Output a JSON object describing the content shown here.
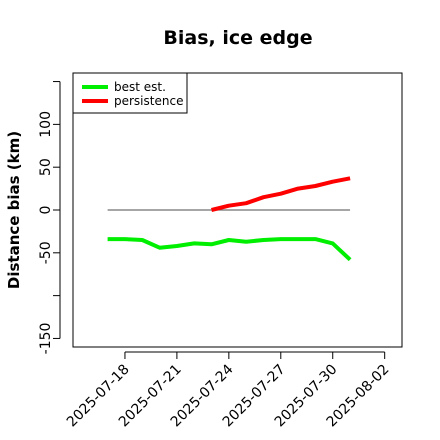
{
  "chart_data": {
    "type": "line",
    "title": "Bias, ice edge",
    "xlabel": "",
    "ylabel": "Distance bias (km)",
    "x_type": "date",
    "xlim": [
      "2025-07-15",
      "2025-08-03"
    ],
    "ylim": [
      -160,
      160
    ],
    "y_ticks": [
      -150,
      -100,
      -50,
      0,
      50,
      100,
      150
    ],
    "y_tick_labels": [
      "-150",
      "",
      "-50",
      "0",
      "50",
      "100",
      ""
    ],
    "x_ticks": [
      "2025-07-18",
      "2025-07-21",
      "2025-07-24",
      "2025-07-27",
      "2025-07-30",
      "2025-08-02"
    ],
    "legend": {
      "placement": "top-left",
      "entries": [
        "best est.",
        "persistence"
      ]
    },
    "reference_line": {
      "y": 0,
      "x_start": "2025-07-17",
      "x_end": "2025-07-31",
      "color": "#707070"
    },
    "series": [
      {
        "name": "best est.",
        "color": "#00ee00",
        "points": [
          {
            "x": "2025-07-17",
            "y": -34
          },
          {
            "x": "2025-07-18",
            "y": -34
          },
          {
            "x": "2025-07-19",
            "y": -35
          },
          {
            "x": "2025-07-20",
            "y": -44
          },
          {
            "x": "2025-07-21",
            "y": -42
          },
          {
            "x": "2025-07-22",
            "y": -39
          },
          {
            "x": "2025-07-23",
            "y": -40
          },
          {
            "x": "2025-07-24",
            "y": -35
          },
          {
            "x": "2025-07-25",
            "y": -37
          },
          {
            "x": "2025-07-26",
            "y": -35
          },
          {
            "x": "2025-07-27",
            "y": -34
          },
          {
            "x": "2025-07-28",
            "y": -34
          },
          {
            "x": "2025-07-29",
            "y": -34
          },
          {
            "x": "2025-07-30",
            "y": -39
          },
          {
            "x": "2025-07-31",
            "y": -58
          }
        ]
      },
      {
        "name": "persistence",
        "color": "#ff0000",
        "points": [
          {
            "x": "2025-07-23",
            "y": 0
          },
          {
            "x": "2025-07-24",
            "y": 5
          },
          {
            "x": "2025-07-25",
            "y": 8
          },
          {
            "x": "2025-07-26",
            "y": 15
          },
          {
            "x": "2025-07-27",
            "y": 19
          },
          {
            "x": "2025-07-28",
            "y": 25
          },
          {
            "x": "2025-07-29",
            "y": 28
          },
          {
            "x": "2025-07-30",
            "y": 33
          },
          {
            "x": "2025-07-31",
            "y": 37
          }
        ]
      }
    ]
  }
}
